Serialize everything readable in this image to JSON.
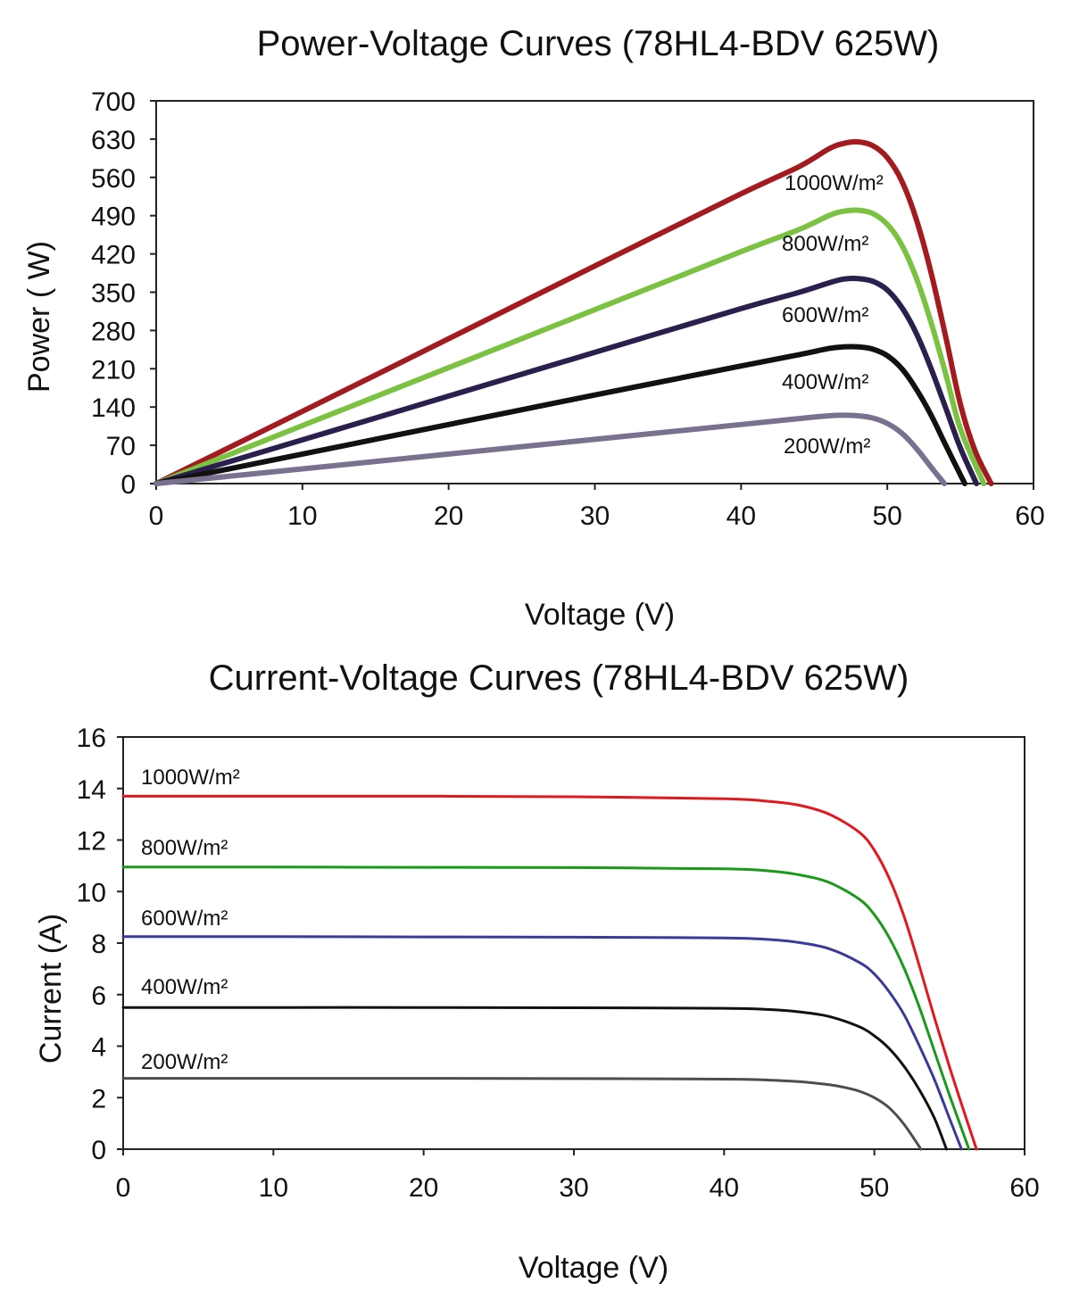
{
  "chart_data": [
    {
      "type": "line",
      "title": "Power-Voltage Curves (78HL4-BDV 625W)",
      "xlabel": "Voltage (V)",
      "ylabel": "Power ( W)",
      "xlim": [
        0,
        60
      ],
      "ylim": [
        0,
        700
      ],
      "xticks": [
        0,
        10,
        20,
        30,
        40,
        50,
        60
      ],
      "yticks": [
        0,
        70,
        140,
        210,
        280,
        350,
        420,
        490,
        560,
        630,
        700
      ],
      "grid": false,
      "legend": "inline-labels",
      "series": [
        {
          "name": "1000W/m²",
          "color": "#a31a1f",
          "x": [
            0,
            10,
            20,
            30,
            40,
            44,
            46,
            47,
            48,
            49,
            50,
            51,
            52,
            53,
            54,
            55,
            56,
            57.1
          ],
          "y": [
            0,
            132,
            265,
            398,
            530,
            580,
            612,
            622,
            625,
            618,
            596,
            553,
            482,
            385,
            268,
            145,
            60,
            0
          ]
        },
        {
          "name": "800W/m²",
          "color": "#7cc242",
          "x": [
            0,
            10,
            20,
            30,
            40,
            44,
            46,
            47,
            48,
            49,
            50,
            51,
            52,
            53,
            54,
            55,
            56.6
          ],
          "y": [
            0,
            106,
            212,
            318,
            424,
            465,
            490,
            498,
            500,
            494,
            474,
            436,
            375,
            294,
            200,
            100,
            0
          ]
        },
        {
          "name": "600W/m²",
          "color": "#2a1f4d",
          "x": [
            0,
            10,
            20,
            30,
            40,
            44,
            46,
            47,
            48,
            49,
            50,
            51,
            52,
            53,
            54,
            55,
            56.1
          ],
          "y": [
            0,
            80,
            160,
            240,
            320,
            350,
            367,
            374,
            375,
            370,
            354,
            322,
            274,
            210,
            138,
            65,
            0
          ]
        },
        {
          "name": "400W/m²",
          "color": "#111111",
          "x": [
            0,
            10,
            20,
            30,
            40,
            44,
            46,
            47,
            48,
            49,
            50,
            51,
            52,
            53,
            54,
            55.3
          ],
          "y": [
            0,
            54,
            108,
            162,
            215,
            236,
            247,
            250,
            250,
            246,
            234,
            210,
            172,
            125,
            70,
            0
          ]
        },
        {
          "name": "200W/m²",
          "color": "#7a7090",
          "x": [
            0,
            10,
            20,
            30,
            40,
            44,
            46,
            47,
            48,
            49,
            50,
            51,
            52,
            53,
            53.9
          ],
          "y": [
            0,
            27,
            54,
            81,
            108,
            119,
            124,
            125,
            124,
            120,
            110,
            92,
            64,
            30,
            0
          ]
        }
      ]
    },
    {
      "type": "line",
      "title": "Current-Voltage Curves (78HL4-BDV 625W)",
      "xlabel": "Voltage (V)",
      "ylabel": "Current (A)",
      "xlim": [
        0,
        60
      ],
      "ylim": [
        0,
        16
      ],
      "xticks": [
        0,
        10,
        20,
        30,
        40,
        50,
        60
      ],
      "yticks": [
        0,
        2,
        4,
        6,
        8,
        10,
        12,
        14,
        16
      ],
      "grid": false,
      "legend": "inline-labels",
      "series": [
        {
          "name": "1000W/m²",
          "color": "#e0191f",
          "x": [
            0,
            10,
            20,
            30,
            40,
            43,
            45,
            47,
            49,
            50,
            51,
            52,
            53,
            54,
            55,
            56,
            56.8
          ],
          "y": [
            13.7,
            13.7,
            13.7,
            13.68,
            13.6,
            13.5,
            13.35,
            13.0,
            12.3,
            11.6,
            10.5,
            9.0,
            7.1,
            5.1,
            3.2,
            1.4,
            0
          ]
        },
        {
          "name": "800W/m²",
          "color": "#1a9a1a",
          "x": [
            0,
            10,
            20,
            30,
            40,
            43,
            45,
            47,
            49,
            50,
            51,
            52,
            53,
            54,
            55,
            56.3
          ],
          "y": [
            10.95,
            10.95,
            10.94,
            10.93,
            10.88,
            10.8,
            10.65,
            10.35,
            9.7,
            9.1,
            8.2,
            7.0,
            5.5,
            3.8,
            2.1,
            0
          ]
        },
        {
          "name": "600W/m²",
          "color": "#3a3a9a",
          "x": [
            0,
            10,
            20,
            30,
            40,
            43,
            45,
            47,
            49,
            50,
            51,
            52,
            53,
            54,
            55,
            55.8
          ],
          "y": [
            8.25,
            8.25,
            8.24,
            8.23,
            8.2,
            8.14,
            8.02,
            7.78,
            7.25,
            6.8,
            6.1,
            5.2,
            4.0,
            2.7,
            1.2,
            0
          ]
        },
        {
          "name": "400W/m²",
          "color": "#111111",
          "x": [
            0,
            10,
            20,
            30,
            40,
            43,
            45,
            47,
            49,
            50,
            51,
            52,
            53,
            54,
            54.8
          ],
          "y": [
            5.5,
            5.5,
            5.5,
            5.49,
            5.47,
            5.42,
            5.33,
            5.15,
            4.75,
            4.4,
            3.9,
            3.2,
            2.3,
            1.2,
            0
          ]
        },
        {
          "name": "200W/m²",
          "color": "#4d4d4d",
          "x": [
            0,
            10,
            20,
            30,
            40,
            43,
            45,
            47,
            48,
            49,
            50,
            51,
            52,
            53.1
          ],
          "y": [
            2.75,
            2.75,
            2.75,
            2.74,
            2.72,
            2.68,
            2.62,
            2.5,
            2.4,
            2.25,
            2.0,
            1.6,
            0.95,
            0
          ]
        }
      ]
    }
  ]
}
